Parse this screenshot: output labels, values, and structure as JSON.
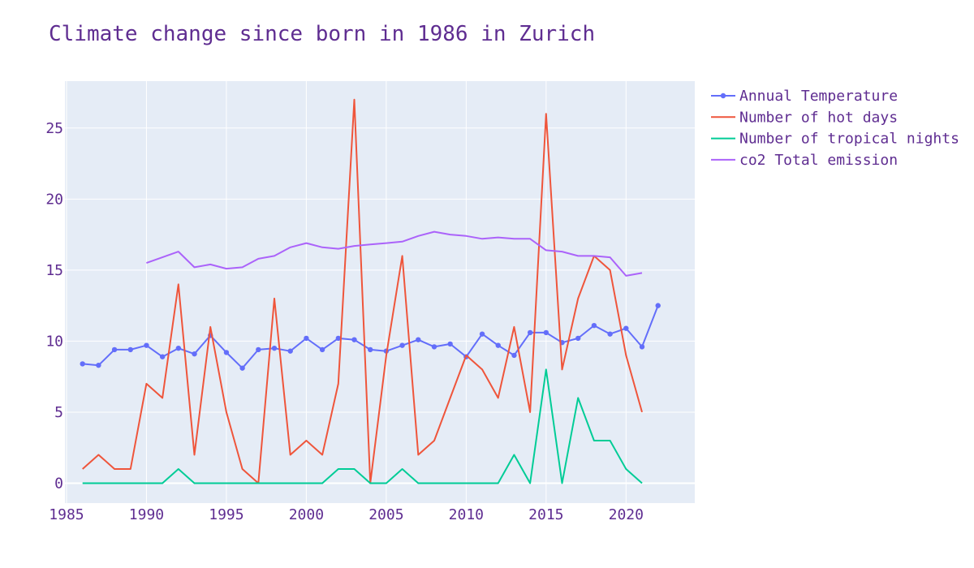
{
  "colors": {
    "text": "#5f2d91",
    "plot_bg": "#e5ecf6",
    "grid": "#ffffff"
  },
  "chart_data": {
    "type": "line",
    "title": "Climate change since born in 1986 in Zurich",
    "xlabel": "",
    "ylabel": "",
    "xlim": [
      1984.9,
      2024.3
    ],
    "ylim": [
      -1.4,
      28.3
    ],
    "x_ticks": [
      1985,
      1990,
      1995,
      2000,
      2005,
      2010,
      2015,
      2020
    ],
    "y_ticks": [
      0,
      5,
      10,
      15,
      20,
      25
    ],
    "grid": true,
    "legend": "right",
    "series": [
      {
        "name": "Annual Temperature",
        "color": "#636efa",
        "markers": true,
        "x": [
          1986,
          1987,
          1988,
          1989,
          1990,
          1991,
          1992,
          1993,
          1994,
          1995,
          1996,
          1997,
          1998,
          1999,
          2000,
          2001,
          2002,
          2003,
          2004,
          2005,
          2006,
          2007,
          2008,
          2009,
          2010,
          2011,
          2012,
          2013,
          2014,
          2015,
          2016,
          2017,
          2018,
          2019,
          2020,
          2021,
          2022
        ],
        "y": [
          8.4,
          8.3,
          9.4,
          9.4,
          9.7,
          8.9,
          9.5,
          9.1,
          10.4,
          9.2,
          8.1,
          9.4,
          9.5,
          9.3,
          10.2,
          9.4,
          10.2,
          10.1,
          9.4,
          9.3,
          9.7,
          10.1,
          9.6,
          9.8,
          8.9,
          10.5,
          9.7,
          9.0,
          10.6,
          10.6,
          9.9,
          10.2,
          11.1,
          10.5,
          10.9,
          9.6,
          12.5
        ]
      },
      {
        "name": "Number of hot days",
        "color": "#ef553b",
        "markers": false,
        "x": [
          1986,
          1987,
          1988,
          1989,
          1990,
          1991,
          1992,
          1993,
          1994,
          1995,
          1996,
          1997,
          1998,
          1999,
          2000,
          2001,
          2002,
          2003,
          2004,
          2005,
          2006,
          2007,
          2008,
          2009,
          2010,
          2011,
          2012,
          2013,
          2014,
          2015,
          2016,
          2017,
          2018,
          2019,
          2020,
          2021
        ],
        "y": [
          1,
          2,
          1,
          1,
          7,
          6,
          14,
          2,
          11,
          5,
          1,
          0,
          13,
          2,
          3,
          2,
          7,
          27,
          0,
          9,
          16,
          2,
          3,
          6,
          9,
          8,
          6,
          11,
          5,
          26,
          8,
          13,
          16,
          15,
          9,
          5
        ]
      },
      {
        "name": "Number of tropical nights",
        "color": "#00cc96",
        "markers": false,
        "x": [
          1986,
          1987,
          1988,
          1989,
          1990,
          1991,
          1992,
          1993,
          1994,
          1995,
          1996,
          1997,
          1998,
          1999,
          2000,
          2001,
          2002,
          2003,
          2004,
          2005,
          2006,
          2007,
          2008,
          2009,
          2010,
          2011,
          2012,
          2013,
          2014,
          2015,
          2016,
          2017,
          2018,
          2019,
          2020,
          2021
        ],
        "y": [
          0,
          0,
          0,
          0,
          0,
          0,
          1,
          0,
          0,
          0,
          0,
          0,
          0,
          0,
          0,
          0,
          1,
          1,
          0,
          0,
          1,
          0,
          0,
          0,
          0,
          0,
          0,
          2,
          0,
          8,
          0,
          6,
          3,
          3,
          1,
          0
        ]
      },
      {
        "name": "co2 Total emission",
        "color": "#ab63fa",
        "markers": false,
        "x": [
          1990,
          1991,
          1992,
          1993,
          1994,
          1995,
          1996,
          1997,
          1998,
          1999,
          2000,
          2001,
          2002,
          2003,
          2004,
          2005,
          2006,
          2007,
          2008,
          2009,
          2010,
          2011,
          2012,
          2013,
          2014,
          2015,
          2016,
          2017,
          2018,
          2019,
          2020,
          2021
        ],
        "y": [
          15.5,
          15.9,
          16.3,
          15.2,
          15.4,
          15.1,
          15.2,
          15.8,
          16.0,
          16.6,
          16.9,
          16.6,
          16.5,
          16.7,
          16.8,
          16.9,
          17.0,
          17.4,
          17.7,
          17.5,
          17.4,
          17.2,
          17.3,
          17.2,
          17.2,
          16.4,
          16.3,
          16.0,
          16.0,
          15.9,
          14.6,
          14.8
        ]
      }
    ]
  }
}
